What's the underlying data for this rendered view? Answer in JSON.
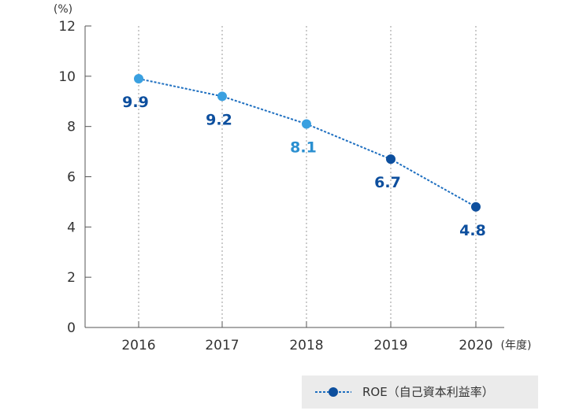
{
  "chart_data": {
    "type": "line",
    "y_unit": "(%)",
    "x_unit": "(年度)",
    "categories": [
      "2016",
      "2017",
      "2018",
      "2019",
      "2020"
    ],
    "series": [
      {
        "name": "ROE（自己資本利益率）",
        "values": [
          9.9,
          9.2,
          8.1,
          6.7,
          4.8
        ]
      }
    ],
    "data_labels": [
      "9.9",
      "9.2",
      "8.1",
      "6.7",
      "4.8"
    ],
    "ylim": [
      0,
      12
    ],
    "yticks": [
      0,
      2,
      4,
      6,
      8,
      10,
      12
    ],
    "grid": "vertical dotted lines at categories",
    "legend": "bottom-right",
    "colors": {
      "line": "#1e6fc0",
      "point_light": "#3aa0e0",
      "point_dark": "#0d4f9e",
      "label_dark": "#0d4f9e",
      "label_light": "#2a8fd0",
      "axis": "#555555",
      "grid": "#9a9a9a"
    },
    "point_styles": [
      "light",
      "light",
      "light",
      "dark",
      "dark"
    ]
  }
}
